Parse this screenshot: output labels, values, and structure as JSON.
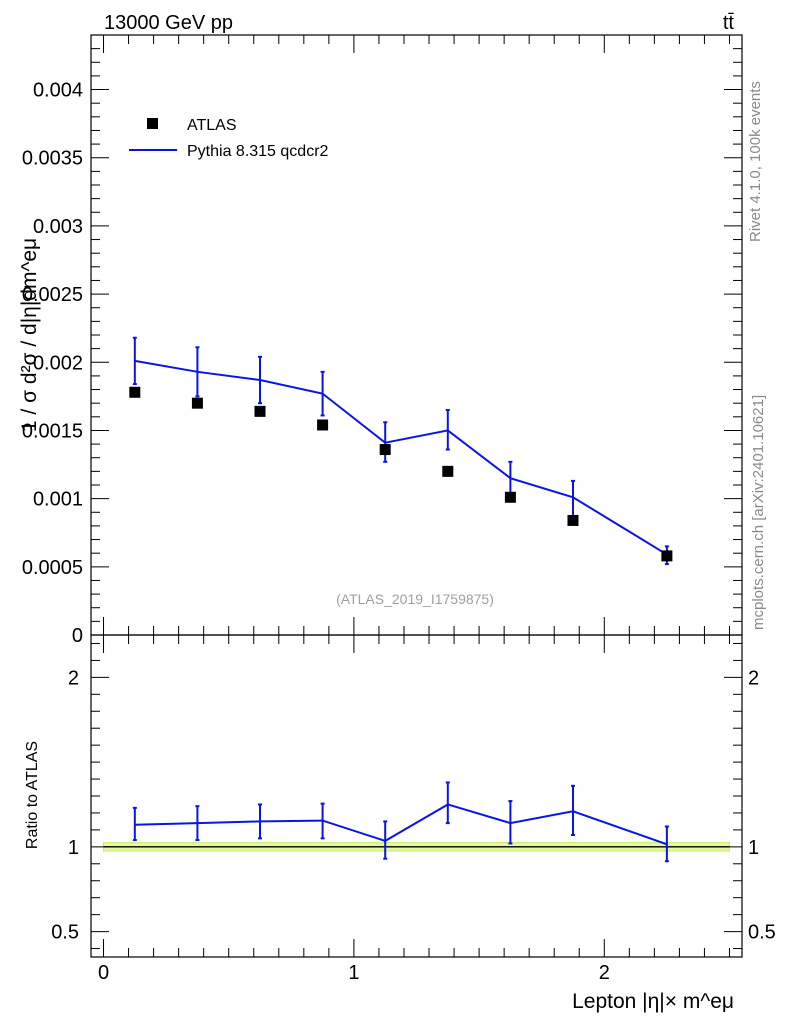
{
  "header": {
    "energy_label": "13000 GeV pp",
    "process_label": "tt̄"
  },
  "side_labels": {
    "rivet": "Rivet 4.1.0,  100k events",
    "source": "mcplots.cern.ch [arXiv:2401.10621]"
  },
  "chart_data": [
    {
      "type": "scatter",
      "panel": "main",
      "ylabel": "1 / σ  d²σ / d|η|dm^eμ",
      "ylim": [
        0,
        0.0044
      ],
      "yticks": [
        0,
        0.0005,
        0.001,
        0.0015,
        0.002,
        0.0025,
        0.003,
        0.0035,
        0.004
      ],
      "ytick_labels": [
        "0",
        "0.0005",
        "0.001",
        "0.0015",
        "0.002",
        "0.0025",
        "0.003",
        "0.0035",
        "0.004"
      ],
      "xlim": [
        -0.05,
        2.55
      ],
      "xticks": [
        0,
        1,
        2
      ],
      "xtick_labels": [
        "0",
        "1",
        "2"
      ],
      "x": [
        0.125,
        0.375,
        0.625,
        0.875,
        1.125,
        1.375,
        1.625,
        1.875,
        2.25
      ],
      "series": [
        {
          "name": "ATLAS",
          "kind": "markers",
          "color": "#000000",
          "values": [
            0.00178,
            0.0017,
            0.00164,
            0.00154,
            0.00136,
            0.0012,
            0.00101,
            0.00084,
            0.00058
          ]
        },
        {
          "name": "Pythia 8.315 qcdcr2",
          "kind": "line",
          "color": "#0a14e6",
          "values": [
            0.00201,
            0.00193,
            0.00187,
            0.00177,
            0.00141,
            0.0015,
            0.00115,
            0.00101,
            0.00059
          ],
          "err_low": [
            0.00184,
            0.00175,
            0.0017,
            0.00161,
            0.00127,
            0.00136,
            0.00102,
            0.00087,
            0.00052
          ],
          "err_high": [
            0.00218,
            0.00211,
            0.00204,
            0.00193,
            0.00156,
            0.00165,
            0.00127,
            0.00113,
            0.00065
          ]
        }
      ],
      "legend": [
        "ATLAS",
        "Pythia 8.315 qcdcr2"
      ],
      "legend_position": "top-left",
      "annotation": "(ATLAS_2019_I1759875)"
    },
    {
      "type": "line",
      "panel": "ratio",
      "ylabel": "Ratio to ATLAS",
      "xlabel": "Lepton |η|× m^eμ",
      "ylim": [
        0.35,
        2.25
      ],
      "yticks": [
        0.5,
        1,
        2
      ],
      "ytick_labels": [
        "0.5",
        "1",
        "2"
      ],
      "xlim": [
        -0.05,
        2.55
      ],
      "xticks": [
        0,
        1,
        2
      ],
      "xtick_labels": [
        "0",
        "1",
        "2"
      ],
      "x": [
        0.125,
        0.375,
        0.625,
        0.875,
        1.125,
        1.375,
        1.625,
        1.875,
        2.25
      ],
      "reference_band": [
        0.975,
        1.025
      ],
      "series": [
        {
          "name": "Pythia 8.315 qcdcr2",
          "color": "#0a14e6",
          "values": [
            1.13,
            1.14,
            1.15,
            1.155,
            1.035,
            1.25,
            1.14,
            1.21,
            1.015
          ],
          "err_low": [
            1.04,
            1.04,
            1.05,
            1.05,
            0.93,
            1.14,
            1.02,
            1.07,
            0.915
          ],
          "err_high": [
            1.23,
            1.24,
            1.25,
            1.255,
            1.15,
            1.38,
            1.27,
            1.36,
            1.12
          ]
        }
      ]
    }
  ]
}
